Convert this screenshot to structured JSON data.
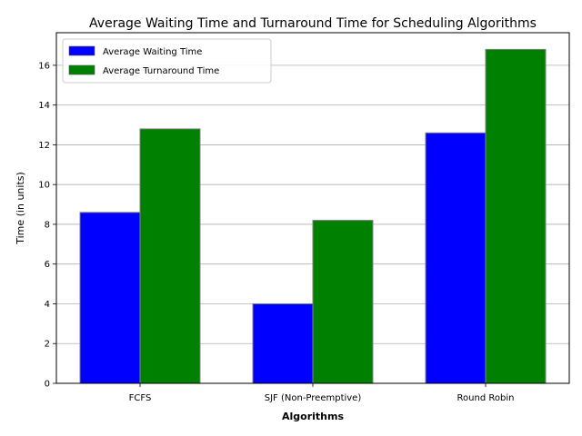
{
  "chart_data": {
    "type": "bar",
    "title": "Average Waiting Time and Turnaround Time for Scheduling Algorithms",
    "xlabel": "Algorithms",
    "ylabel": "Time (in units)",
    "categories": [
      "FCFS",
      "SJF (Non-Preemptive)",
      "Round Robin"
    ],
    "series": [
      {
        "name": "Average Waiting Time",
        "color": "#0000ff",
        "values": [
          8.6,
          4.0,
          12.6
        ]
      },
      {
        "name": "Average Turnaround Time",
        "color": "#008000",
        "values": [
          12.8,
          8.2,
          16.8
        ]
      }
    ],
    "ylim": [
      0,
      17.64
    ],
    "yticks": [
      0,
      2,
      4,
      6,
      8,
      10,
      12,
      14,
      16
    ],
    "grid": "y",
    "legend": "top-left"
  }
}
